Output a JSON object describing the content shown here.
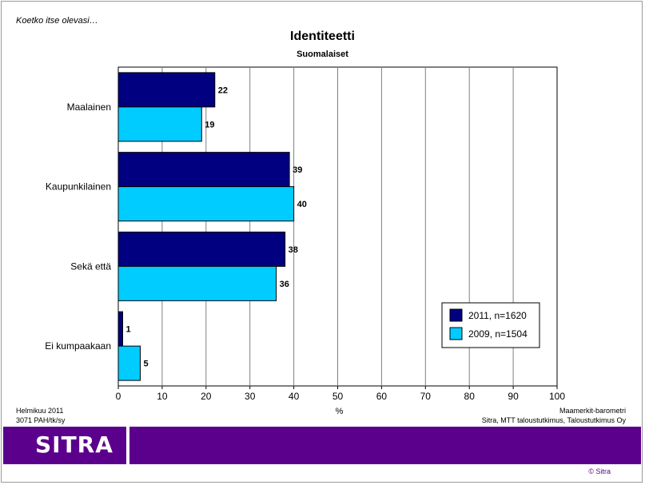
{
  "header": {
    "question": "Koetko itse olevasi…",
    "title": "Identiteetti",
    "subtitle": "Suomalaiset"
  },
  "footer": {
    "date": "Helmikuu 2011",
    "code": "3071 PAH/tk/sy",
    "source_name": "Maamerkit-barometri",
    "source_orgs": "Sitra, MTT taloustutkimus, Taloustutkimus Oy",
    "logo": "SITRA",
    "copyright": "© Sitra"
  },
  "colors": {
    "brand_purple": "#5b008c",
    "series_2011": "#000080",
    "series_2009": "#00ccff"
  },
  "chart_data": {
    "type": "bar",
    "orientation": "horizontal",
    "title": "Identiteetti",
    "subtitle": "Suomalaiset",
    "categories": [
      "Maalainen",
      "Kaupunkilainen",
      "Sekä että",
      "Ei kumpaakaan"
    ],
    "series": [
      {
        "name": "2011, n=1620",
        "values": [
          22,
          39,
          38,
          1
        ],
        "color": "#000080"
      },
      {
        "name": "2009, n=1504",
        "values": [
          19,
          40,
          36,
          5
        ],
        "color": "#00ccff"
      }
    ],
    "xlabel": "%",
    "ylabel": "",
    "xlim": [
      0,
      100
    ],
    "xticks": [
      0,
      10,
      20,
      30,
      40,
      50,
      60,
      70,
      80,
      90,
      100
    ],
    "grid": "vertical",
    "legend": "bottom-right",
    "data_labels": true
  }
}
